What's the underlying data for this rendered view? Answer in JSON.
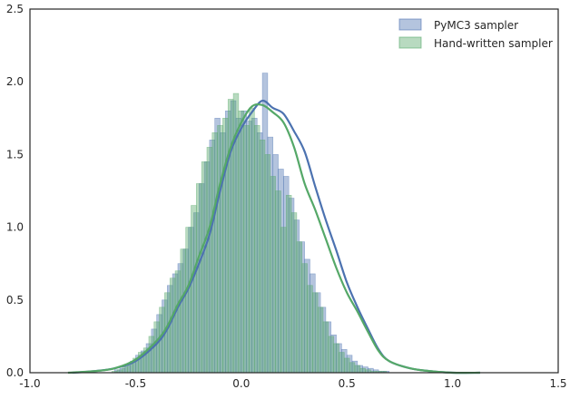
{
  "chart_data": {
    "type": "bar",
    "subtype": "histogram-with-kde",
    "title": "",
    "xlabel": "",
    "ylabel": "",
    "xlim": [
      -1.0,
      1.5
    ],
    "ylim": [
      0.0,
      2.5
    ],
    "x_ticks": [
      "-1.0",
      "-0.5",
      "0.0",
      "0.5",
      "1.0",
      "1.5"
    ],
    "y_ticks": [
      "0.0",
      "0.5",
      "1.0",
      "1.5",
      "2.0",
      "2.5"
    ],
    "grid": false,
    "legend_position": "top-right",
    "series": [
      {
        "name": "PyMC3 sampler",
        "color": "#4c72b0",
        "hist": {
          "bin_start": -0.6,
          "bin_width": 0.025,
          "heights": [
            0.02,
            0.03,
            0.05,
            0.08,
            0.12,
            0.15,
            0.2,
            0.3,
            0.4,
            0.5,
            0.6,
            0.68,
            0.75,
            0.85,
            1.0,
            1.1,
            1.3,
            1.45,
            1.6,
            1.75,
            1.65,
            1.8,
            1.87,
            1.75,
            1.8,
            1.73,
            1.75,
            1.65,
            2.06,
            1.62,
            1.5,
            1.4,
            1.35,
            1.2,
            1.05,
            0.9,
            0.78,
            0.68,
            0.55,
            0.45,
            0.35,
            0.26,
            0.2,
            0.16,
            0.12,
            0.08,
            0.05,
            0.04,
            0.03,
            0.02,
            0.01,
            0.01
          ]
        },
        "kde": {
          "x": [
            -0.8,
            -0.7,
            -0.6,
            -0.5,
            -0.4,
            -0.35,
            -0.3,
            -0.25,
            -0.2,
            -0.15,
            -0.1,
            -0.05,
            0.0,
            0.05,
            0.1,
            0.15,
            0.2,
            0.25,
            0.3,
            0.35,
            0.4,
            0.45,
            0.5,
            0.55,
            0.6,
            0.65,
            0.7,
            0.8,
            0.9,
            1.0,
            1.13
          ],
          "y": [
            0.0,
            0.01,
            0.03,
            0.08,
            0.2,
            0.3,
            0.45,
            0.58,
            0.75,
            0.95,
            1.25,
            1.52,
            1.68,
            1.79,
            1.87,
            1.82,
            1.78,
            1.66,
            1.52,
            1.28,
            1.05,
            0.84,
            0.62,
            0.45,
            0.3,
            0.16,
            0.08,
            0.03,
            0.01,
            0.0,
            0.0
          ]
        }
      },
      {
        "name": "Hand-written sampler",
        "color": "#55a868",
        "hist": {
          "bin_start": -0.6125,
          "bin_width": 0.025,
          "heights": [
            0.01,
            0.02,
            0.04,
            0.06,
            0.1,
            0.14,
            0.17,
            0.25,
            0.35,
            0.45,
            0.55,
            0.65,
            0.7,
            0.85,
            1.0,
            1.15,
            1.3,
            1.45,
            1.55,
            1.65,
            1.7,
            1.75,
            1.88,
            1.92,
            1.8,
            1.7,
            1.82,
            1.7,
            1.6,
            1.5,
            1.35,
            1.25,
            1.0,
            1.22,
            1.1,
            0.9,
            0.75,
            0.6,
            0.55,
            0.45,
            0.35,
            0.25,
            0.2,
            0.14,
            0.1,
            0.07,
            0.05,
            0.03,
            0.02,
            0.01,
            0.01,
            0.01
          ]
        },
        "kde": {
          "x": [
            -0.82,
            -0.7,
            -0.6,
            -0.5,
            -0.4,
            -0.35,
            -0.3,
            -0.25,
            -0.2,
            -0.15,
            -0.1,
            -0.05,
            0.0,
            0.05,
            0.1,
            0.15,
            0.2,
            0.25,
            0.3,
            0.35,
            0.4,
            0.45,
            0.5,
            0.55,
            0.6,
            0.65,
            0.7,
            0.8,
            0.9,
            1.0,
            1.13
          ],
          "y": [
            0.0,
            0.01,
            0.03,
            0.09,
            0.22,
            0.32,
            0.47,
            0.6,
            0.8,
            1.0,
            1.3,
            1.55,
            1.72,
            1.83,
            1.84,
            1.79,
            1.72,
            1.55,
            1.3,
            1.12,
            0.92,
            0.72,
            0.55,
            0.42,
            0.28,
            0.15,
            0.08,
            0.03,
            0.01,
            0.0,
            0.0
          ]
        }
      }
    ]
  }
}
